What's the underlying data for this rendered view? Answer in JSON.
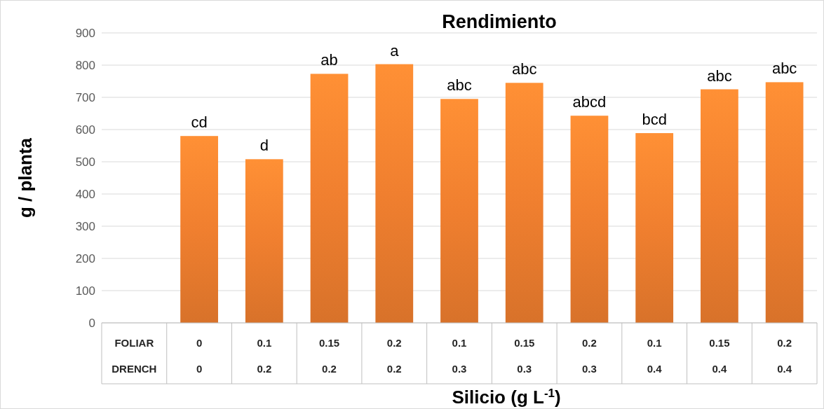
{
  "chart_data": {
    "type": "bar",
    "title": "Rendimiento",
    "xlabel": "Silicio (g L$^{-1}$)",
    "ylabel": "g / planta",
    "categories": [
      "FOLIAR\nDRENCH",
      "0\n0",
      "0.1\n0.2",
      "0.15\n0.2",
      "0.2\n0.2",
      "0.1\n0.3",
      "0.15\n0.3",
      "0.2\n0.3",
      "0.1\n0.4",
      "0.15\n0.4",
      "0.2\n0.4"
    ],
    "values": [
      null,
      580,
      508,
      773,
      803,
      695,
      745,
      643,
      589,
      725,
      747
    ],
    "value_labels": [
      null,
      "cd",
      "d",
      "ab",
      "a",
      "abc",
      "abc",
      "abcd",
      "bcd",
      "abc",
      "abc"
    ],
    "color": "#f07f2f",
    "ylim": [
      0,
      900
    ],
    "yticks": [
      0,
      100,
      200,
      300,
      400,
      500,
      600,
      700,
      800,
      900
    ],
    "grid": "y"
  }
}
